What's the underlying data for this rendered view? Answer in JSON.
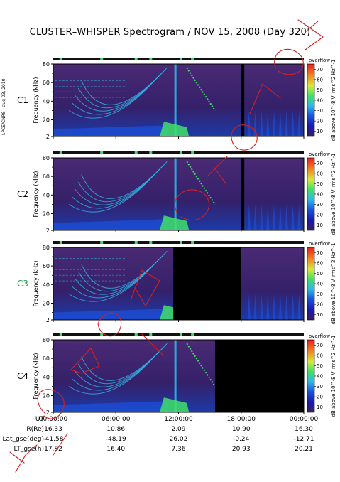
{
  "header": {
    "title": "CLUSTER–WHISPER Spectrogram / NOV 15, 2008 (Day 320)",
    "side_credit": "LPCE/CNRS - aug 03, 2010"
  },
  "colors": {
    "background_dark": "#3a1f5c",
    "spectrum_blue": "#1c4fd8",
    "spectrum_cyan": "#2fb6e8",
    "spectrum_green": "#3fe06a",
    "black_gap": "#000000",
    "overlay_red": "#d42020"
  },
  "chart_data": [
    {
      "type": "heatmap",
      "spacecraft": "C1",
      "ylabel": "Frequency (kHz)",
      "yticks": [
        2,
        20,
        40,
        60,
        80
      ],
      "ylim": [
        2,
        80
      ],
      "colorbar": {
        "label": "dB above 10^-8 V_rms^2 Hz^-1",
        "ticks": [
          10,
          20,
          30,
          40,
          50,
          60,
          70
        ],
        "range": [
          5,
          75
        ],
        "overflow_label": "overflow"
      },
      "data_gaps_hours": [
        [
          18.0,
          18.3
        ]
      ],
      "label_color": "#000000"
    },
    {
      "type": "heatmap",
      "spacecraft": "C2",
      "ylabel": "Frequency (kHz)",
      "yticks": [
        2,
        20,
        40,
        60,
        80
      ],
      "ylim": [
        2,
        80
      ],
      "colorbar": {
        "label": "dB above 10^-8 V_rms^2 Hz^-1",
        "ticks": [
          10,
          20,
          30,
          40,
          50,
          60,
          70
        ],
        "range": [
          5,
          75
        ],
        "overflow_label": "overflow"
      },
      "data_gaps_hours": [
        [
          18.0,
          18.3
        ]
      ],
      "label_color": "#000000"
    },
    {
      "type": "heatmap",
      "spacecraft": "C3",
      "ylabel": "Frequency (kHz)",
      "yticks": [
        2,
        20,
        40,
        60,
        80
      ],
      "ylim": [
        2,
        80
      ],
      "colorbar": {
        "label": "dB above 10^-8 V_rms^2 Hz^-1",
        "ticks": [
          10,
          20,
          30,
          40,
          50,
          60,
          70
        ],
        "range": [
          5,
          75
        ],
        "overflow_label": "overflow"
      },
      "data_gaps_hours": [
        [
          11.5,
          18.0
        ]
      ],
      "label_color": "#2aa84a"
    },
    {
      "type": "heatmap",
      "spacecraft": "C4",
      "ylabel": "Frequency (kHz)",
      "yticks": [
        2,
        20,
        40,
        60,
        80
      ],
      "ylim": [
        2,
        80
      ],
      "colorbar": {
        "label": "dB above 10^-8 V_rms^2 Hz^-1",
        "ticks": [
          10,
          20,
          30,
          40,
          50,
          60,
          70
        ],
        "range": [
          5,
          75
        ],
        "overflow_label": "overflow"
      },
      "data_gaps_hours": [
        [
          15.5,
          24.0
        ]
      ],
      "label_color": "#000000"
    }
  ],
  "time_axis": {
    "labels": [
      "00:00:00",
      "06:00:00",
      "12:00:00",
      "18:00:00",
      "00:00:00"
    ],
    "hours": [
      0,
      6,
      12,
      18,
      24
    ]
  },
  "orbit_table": {
    "rows": [
      {
        "label": "UT",
        "values": [
          "00:00:00",
          "06:00:00",
          "12:00:00",
          "18:00:00",
          "00:00:00"
        ]
      },
      {
        "label": "R(Re)",
        "values": [
          "16.33",
          "10.86",
          "2.09",
          "10.90",
          "16.30"
        ]
      },
      {
        "label": "Lat_gse(deg)",
        "values": [
          "-41.58",
          "-48.19",
          "26.02",
          "-0.24",
          "-12.71"
        ]
      },
      {
        "label": "LT_gse(h)",
        "values": [
          "17.82",
          "16.40",
          "7.36",
          "20.93",
          "20.21"
        ]
      }
    ]
  }
}
